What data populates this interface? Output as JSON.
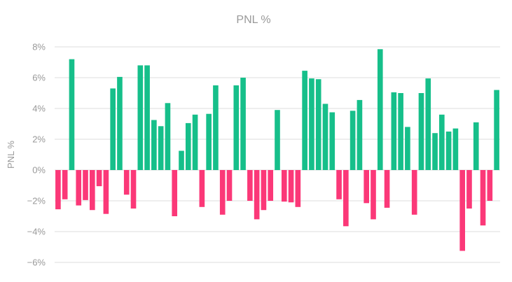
{
  "chart_data": {
    "type": "bar",
    "title": "PNL %",
    "xlabel": "",
    "ylabel": "PNL %",
    "ylim": [
      -6,
      8
    ],
    "yticks": [
      8,
      6,
      4,
      2,
      0,
      -2,
      -4,
      -6
    ],
    "ytick_suffix": "%",
    "grid": true,
    "legend": "none",
    "colors": {
      "positive": "#16bf8a",
      "negative": "#fb3878",
      "grid": "#dddddd",
      "text": "#999999"
    },
    "values": [
      -2.55,
      -1.9,
      7.2,
      -2.3,
      -1.95,
      -2.6,
      -1.05,
      -2.85,
      5.3,
      6.05,
      -1.6,
      -2.5,
      6.8,
      6.8,
      3.25,
      2.85,
      4.35,
      -3.0,
      1.25,
      3.05,
      3.6,
      -2.4,
      3.65,
      5.5,
      -2.9,
      -2.0,
      5.5,
      6.0,
      -2.0,
      -3.2,
      -2.6,
      -2.0,
      3.9,
      -2.05,
      -2.1,
      -2.4,
      6.45,
      5.95,
      5.9,
      4.3,
      3.75,
      -1.9,
      -3.65,
      3.85,
      4.55,
      -2.15,
      -3.2,
      7.85,
      -2.45,
      5.05,
      5.0,
      2.8,
      -2.9,
      5.0,
      5.95,
      2.4,
      3.6,
      2.5,
      2.7,
      -5.25,
      -2.5,
      3.1,
      -3.6,
      -2.0,
      5.2
    ]
  }
}
